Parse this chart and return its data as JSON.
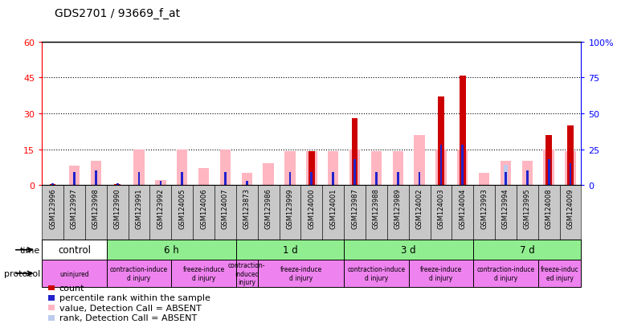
{
  "title": "GDS2701 / 93669_f_at",
  "samples": [
    "GSM123996",
    "GSM123997",
    "GSM123998",
    "GSM123990",
    "GSM123991",
    "GSM123992",
    "GSM124005",
    "GSM124006",
    "GSM124007",
    "GSM123873",
    "GSM123986",
    "GSM123999",
    "GSM124000",
    "GSM124001",
    "GSM123987",
    "GSM123988",
    "GSM123989",
    "GSM124002",
    "GSM124003",
    "GSM124004",
    "GSM123993",
    "GSM123994",
    "GSM123995",
    "GSM124008",
    "GSM124009"
  ],
  "count": [
    0.5,
    0,
    0,
    0.5,
    0,
    0,
    0,
    0,
    0,
    0,
    0,
    0,
    14,
    0,
    28,
    0,
    0,
    0,
    37,
    46,
    0,
    0,
    0,
    21,
    25
  ],
  "rank": [
    1,
    9,
    10,
    1,
    9,
    3,
    9,
    0,
    9,
    3,
    0,
    9,
    9,
    9,
    18,
    9,
    9,
    9,
    28,
    28,
    0,
    9,
    10,
    18,
    15
  ],
  "absent_val": [
    0,
    8,
    10,
    0,
    15,
    2,
    15,
    7,
    15,
    5,
    9,
    14,
    14,
    14,
    15,
    14,
    14,
    21,
    15,
    15,
    5,
    10,
    10,
    15,
    14
  ],
  "absent_rank": [
    0,
    0,
    0,
    0,
    0,
    0,
    0,
    0,
    0,
    0,
    0,
    0,
    0,
    0,
    15,
    0,
    0,
    0,
    0,
    0,
    0,
    14,
    0,
    0,
    0
  ],
  "left_ylim": [
    0,
    60
  ],
  "right_ylim": [
    0,
    100
  ],
  "left_yticks": [
    0,
    15,
    30,
    45,
    60
  ],
  "right_yticks": [
    0,
    25,
    50,
    75,
    100
  ],
  "count_color": "#CC0000",
  "rank_color": "#2222CC",
  "absent_val_color": "#FFB6C1",
  "absent_rank_color": "#BBCCEE",
  "xticklabel_bg": "#C8C8C8",
  "time_groups": [
    {
      "label": "control",
      "start": 0,
      "end": 3,
      "color": "#FFFFFF"
    },
    {
      "label": "6 h",
      "start": 3,
      "end": 9,
      "color": "#90EE90"
    },
    {
      "label": "1 d",
      "start": 9,
      "end": 14,
      "color": "#90EE90"
    },
    {
      "label": "3 d",
      "start": 14,
      "end": 20,
      "color": "#90EE90"
    },
    {
      "label": "7 d",
      "start": 20,
      "end": 25,
      "color": "#90EE90"
    }
  ],
  "protocol_groups": [
    {
      "label": "uninjured",
      "start": 0,
      "end": 3
    },
    {
      "label": "contraction-induce\nd injury",
      "start": 3,
      "end": 6
    },
    {
      "label": "freeze-induce\nd injury",
      "start": 6,
      "end": 9
    },
    {
      "label": "contraction-\ninduced\ninjury",
      "start": 9,
      "end": 10
    },
    {
      "label": "freeze-induce\nd injury",
      "start": 10,
      "end": 14
    },
    {
      "label": "contraction-induce\nd injury",
      "start": 14,
      "end": 17
    },
    {
      "label": "freeze-induce\nd injury",
      "start": 17,
      "end": 20
    },
    {
      "label": "contraction-induce\nd injury",
      "start": 20,
      "end": 23
    },
    {
      "label": "freeze-induc\ned injury",
      "start": 23,
      "end": 25
    }
  ],
  "legend_items": [
    {
      "color": "#CC0000",
      "label": "count"
    },
    {
      "color": "#2222CC",
      "label": "percentile rank within the sample"
    },
    {
      "color": "#FFB6C1",
      "label": "value, Detection Call = ABSENT"
    },
    {
      "color": "#BBCCEE",
      "label": "rank, Detection Call = ABSENT"
    }
  ]
}
